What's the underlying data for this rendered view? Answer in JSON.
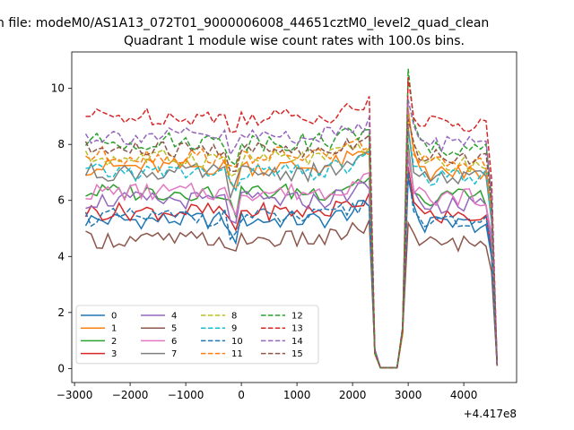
{
  "chart_data": {
    "type": "line",
    "suptitle": "n file: modeM0/AS1A13_072T01_9000006008_44651cztM0_level2_quad_clean",
    "title": "Quadrant 1 module wise count rates with 100.0s bins.",
    "offset_label": "+4.417e8",
    "xlim": [
      -3050,
      4950
    ],
    "ylim": [
      -0.5,
      11.3
    ],
    "xticks": [
      -3000,
      -2000,
      -1000,
      0,
      1000,
      2000,
      3000,
      4000
    ],
    "xtick_labels": [
      "−3000",
      "−2000",
      "−1000",
      "0",
      "1000",
      "2000",
      "3000",
      "4000"
    ],
    "yticks": [
      0,
      2,
      4,
      6,
      8,
      10
    ],
    "ytick_labels": [
      "0",
      "2",
      "4",
      "6",
      "8",
      "10"
    ],
    "legend_position": "lower-left",
    "legend_columns": 4,
    "x_start": -2800,
    "x_step": 100,
    "x_stop": 4600,
    "gap": {
      "fall_end": 2400,
      "low_end": 2900,
      "rise_end": 3000
    },
    "series": [
      {
        "name": "0",
        "color": "#1f77b4",
        "dash": "solid",
        "base": 5.3,
        "peak": 6.8
      },
      {
        "name": "1",
        "color": "#ff7f0e",
        "dash": "solid",
        "base": 7.2,
        "peak": 9.2
      },
      {
        "name": "2",
        "color": "#2ca02c",
        "dash": "solid",
        "base": 6.3,
        "peak": 8.0
      },
      {
        "name": "3",
        "color": "#d62728",
        "dash": "solid",
        "base": 5.6,
        "peak": 7.2
      },
      {
        "name": "4",
        "color": "#9467bd",
        "dash": "solid",
        "base": 6.0,
        "peak": 7.6
      },
      {
        "name": "5",
        "color": "#8c564b",
        "dash": "solid",
        "base": 4.6,
        "peak": 5.2
      },
      {
        "name": "6",
        "color": "#e377c2",
        "dash": "solid",
        "base": 6.3,
        "peak": 7.8
      },
      {
        "name": "7",
        "color": "#7f7f7f",
        "dash": "solid",
        "base": 7.0,
        "peak": 8.6
      },
      {
        "name": "8",
        "color": "#bcbd22",
        "dash": "dashed",
        "base": 7.5,
        "peak": 9.0
      },
      {
        "name": "9",
        "color": "#17becf",
        "dash": "dashed",
        "base": 7.0,
        "peak": 8.5
      },
      {
        "name": "10",
        "color": "#1f77b4",
        "dash": "dashed",
        "base": 5.4,
        "peak": 7.0
      },
      {
        "name": "11",
        "color": "#ff7f0e",
        "dash": "dashed",
        "base": 7.6,
        "peak": 9.3
      },
      {
        "name": "12",
        "color": "#2ca02c",
        "dash": "dashed",
        "base": 8.1,
        "peak": 10.7
      },
      {
        "name": "13",
        "color": "#d62728",
        "dash": "dashed",
        "base": 9.0,
        "peak": 10.4
      },
      {
        "name": "14",
        "color": "#9467bd",
        "dash": "dashed",
        "base": 8.3,
        "peak": 9.6
      },
      {
        "name": "15",
        "color": "#8c564b",
        "dash": "dashed",
        "base": 7.8,
        "peak": 8.9
      }
    ]
  }
}
